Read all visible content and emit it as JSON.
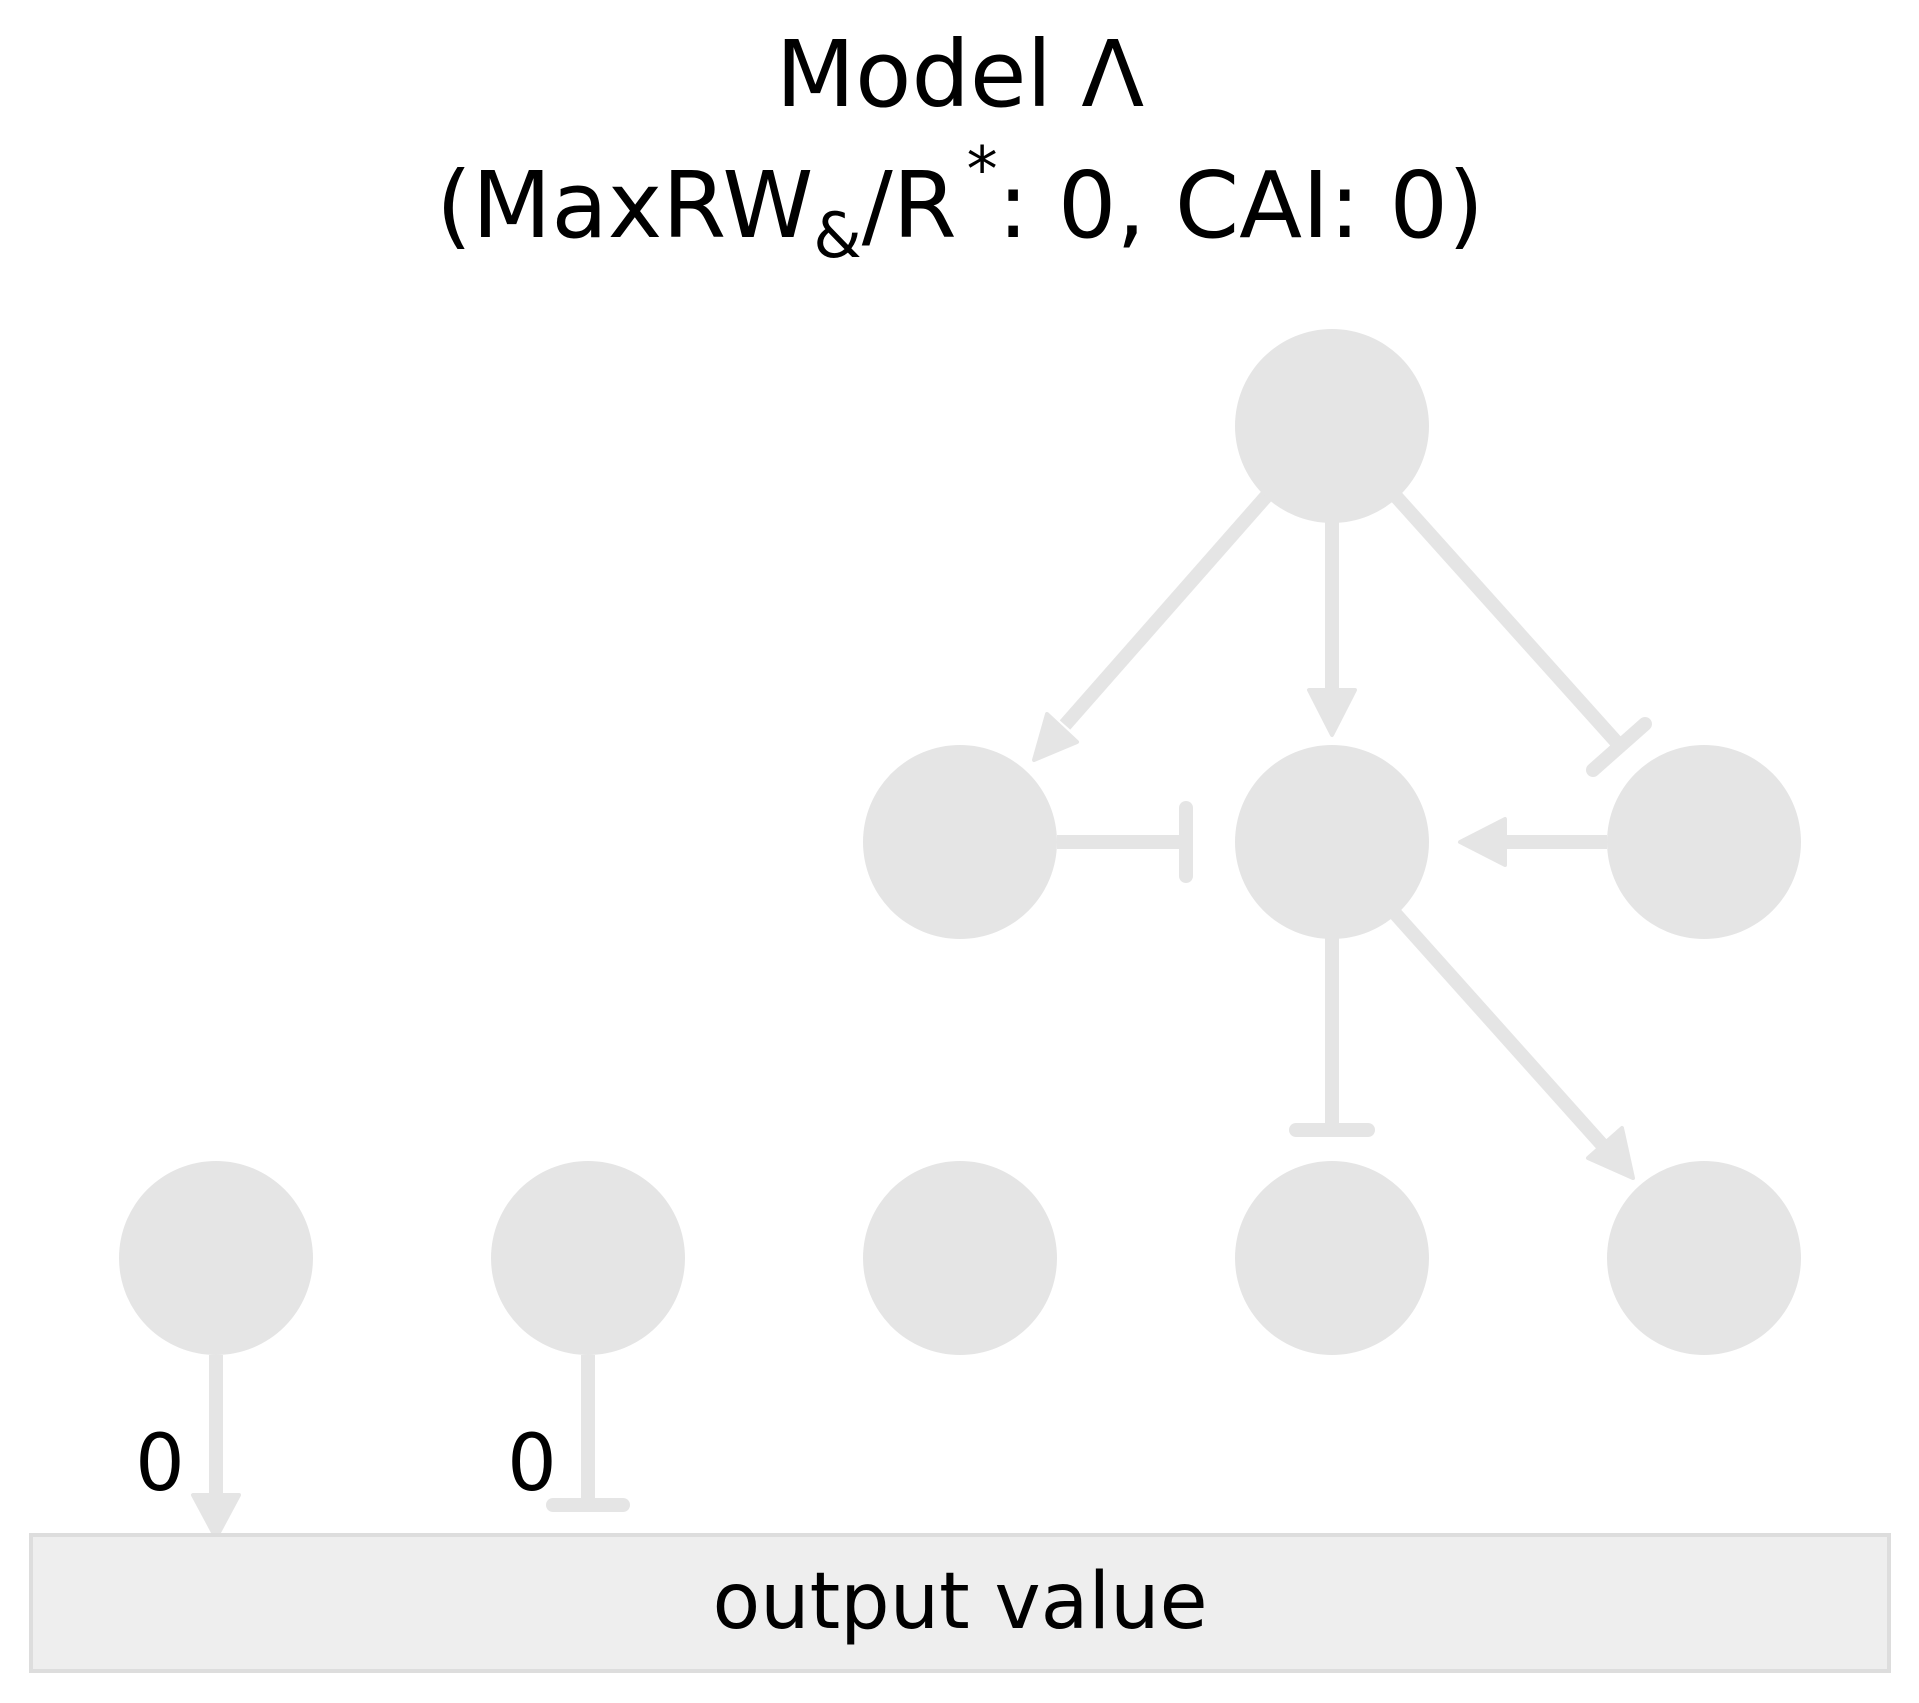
{
  "title": {
    "line1": "Model Λ",
    "line2_open": "(MaxRW",
    "line2_subscript": "&",
    "line2_mid": "/R",
    "line2_superscript": "*",
    "line2_rest": ": 0, CAI: 0)"
  },
  "colors": {
    "node": "#e5e5e5",
    "edge": "#e5e5e5",
    "output_box_fill": "#eeeeee",
    "output_box_border": "#dddddd",
    "text": "#000000"
  },
  "nodes": [
    {
      "id": "n-top"
    },
    {
      "id": "n-mid-left"
    },
    {
      "id": "n-mid-center"
    },
    {
      "id": "n-mid-right"
    },
    {
      "id": "n-bottom-1"
    },
    {
      "id": "n-bottom-2"
    },
    {
      "id": "n-bottom-3"
    },
    {
      "id": "n-bottom-4"
    },
    {
      "id": "n-bottom-5"
    }
  ],
  "edges": [
    {
      "from": "n-top",
      "to": "n-mid-left",
      "type": "activation"
    },
    {
      "from": "n-top",
      "to": "n-mid-center",
      "type": "activation"
    },
    {
      "from": "n-top",
      "to": "n-mid-right",
      "type": "inhibition"
    },
    {
      "from": "n-mid-left",
      "to": "n-mid-center",
      "type": "inhibition"
    },
    {
      "from": "n-mid-right",
      "to": "n-mid-center",
      "type": "activation"
    },
    {
      "from": "n-mid-center",
      "to": "n-bottom-4",
      "type": "inhibition"
    },
    {
      "from": "n-mid-center",
      "to": "n-bottom-5",
      "type": "activation"
    },
    {
      "from": "n-bottom-1",
      "to": "output",
      "type": "activation",
      "label": "0"
    },
    {
      "from": "n-bottom-2",
      "to": "output",
      "type": "inhibition",
      "label": "0"
    }
  ],
  "output": {
    "label": "output value"
  }
}
